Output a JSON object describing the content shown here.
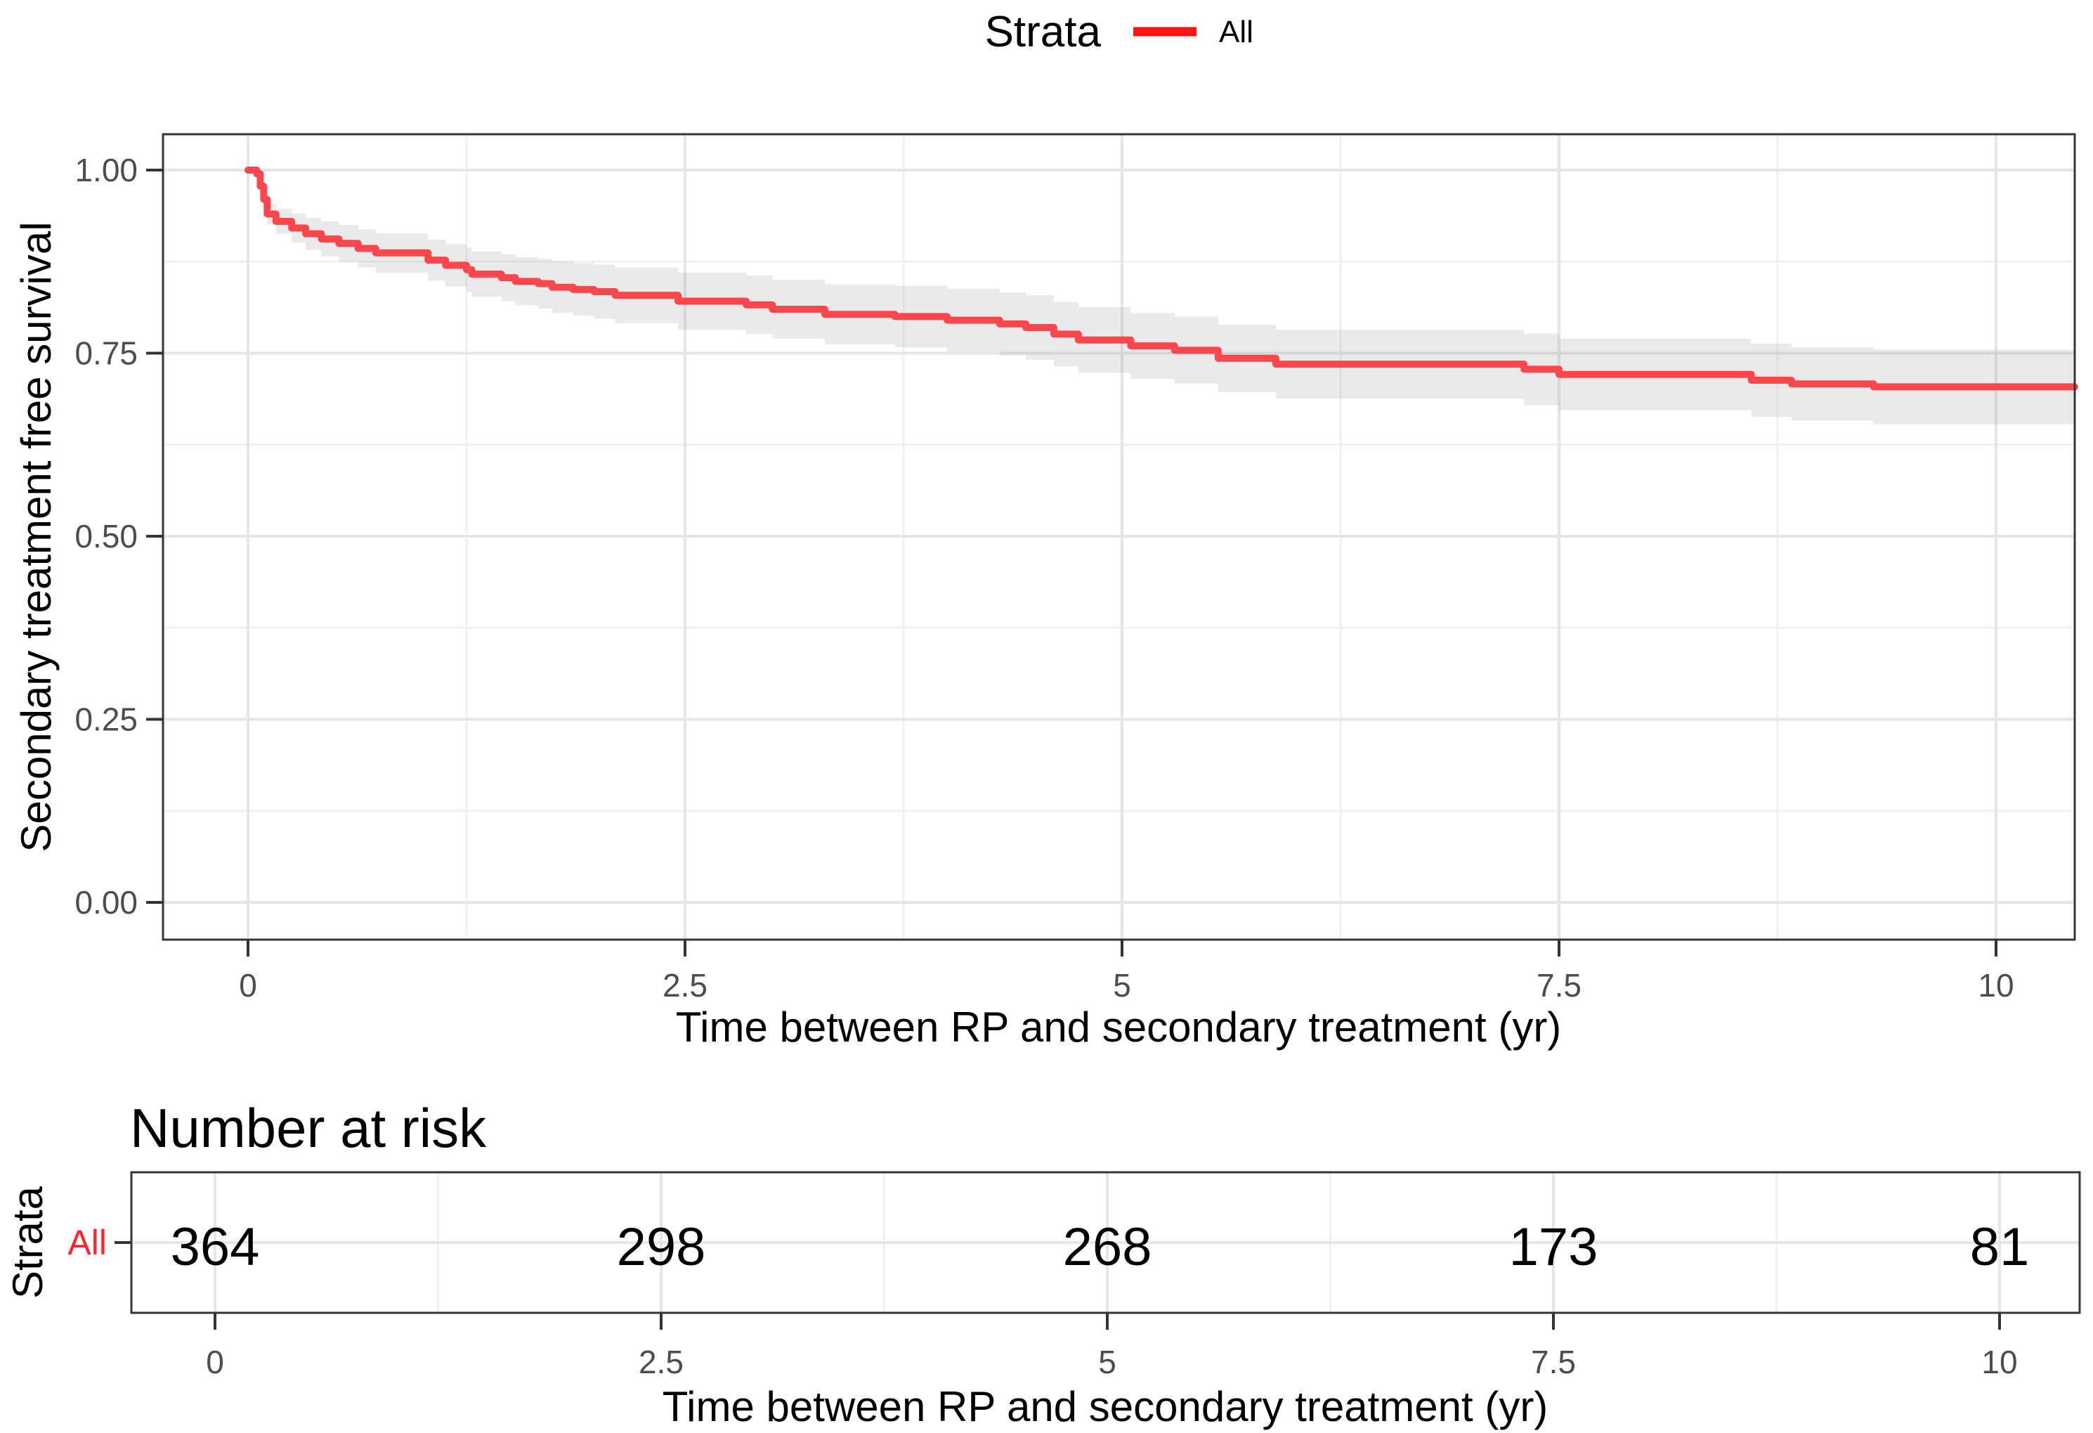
{
  "colors": {
    "curve": "#f9474d",
    "legend_key": "#ff1414",
    "all_label": "#ff2330",
    "band": "rgba(127,127,127,0.16)",
    "grid_major": "#e6e6e6",
    "grid_minor": "#f0f0f0",
    "panel_border": "#343434",
    "tick_text": "#4d4d4d",
    "title_text": "#000000"
  },
  "legend": {
    "title": "Strata",
    "items": [
      {
        "label": "All"
      }
    ]
  },
  "main_plot": {
    "y_axis_title": "Secondary treatment free survival",
    "x_axis_title": "Time between RP and secondary treatment (yr)",
    "y_ticks": [
      "1.00",
      "0.75",
      "0.50",
      "0.25",
      "0.00"
    ],
    "x_ticks": [
      "0",
      "2.5",
      "5",
      "7.5",
      "10"
    ]
  },
  "risk_table": {
    "title": "Number at risk",
    "axis_label": "Strata",
    "row_label": "All",
    "counts": [
      "364",
      "298",
      "268",
      "173",
      "81"
    ],
    "x_ticks": [
      "0",
      "2.5",
      "5",
      "7.5",
      "10"
    ],
    "x_axis_title": "Time between RP and secondary treatment (yr)"
  },
  "chart_data": {
    "type": "line",
    "subtype": "kaplan-meier-step",
    "title": "",
    "xlabel": "Time between RP and secondary treatment (yr)",
    "ylabel": "Secondary treatment free survival",
    "legend_title": "Strata",
    "legend_position": "top",
    "grid": true,
    "xlim": [
      -0.5,
      10.5
    ],
    "ylim": [
      -0.05,
      1.05
    ],
    "x_major_ticks": [
      0,
      2.5,
      5,
      7.5,
      10
    ],
    "y_major_ticks": [
      1.0,
      0.75,
      0.5,
      0.25,
      0.0
    ],
    "x_minor_ticks": [
      1.25,
      3.75,
      6.25,
      8.75
    ],
    "y_minor_ticks": [
      0.875,
      0.625,
      0.375,
      0.125
    ],
    "series": [
      {
        "name": "All",
        "step": true,
        "t": [
          0,
          0.05,
          0.07,
          0.09,
          0.11,
          0.16,
          0.25,
          0.33,
          0.42,
          0.52,
          0.63,
          0.73,
          1.03,
          1.13,
          1.25,
          1.28,
          1.45,
          1.53,
          1.66,
          1.74,
          1.86,
          1.98,
          2.1,
          2.46,
          2.85,
          3.0,
          3.3,
          3.7,
          4.0,
          4.3,
          4.45,
          4.61,
          4.75,
          5.05,
          5.3,
          5.55,
          5.88,
          7.3,
          7.5,
          8.6,
          8.83,
          9.3,
          10.45
        ],
        "survival": [
          1.0,
          0.995,
          0.978,
          0.96,
          0.94,
          0.93,
          0.921,
          0.913,
          0.906,
          0.9,
          0.893,
          0.887,
          0.877,
          0.87,
          0.864,
          0.858,
          0.853,
          0.848,
          0.845,
          0.84,
          0.837,
          0.834,
          0.829,
          0.821,
          0.816,
          0.81,
          0.803,
          0.8,
          0.795,
          0.79,
          0.785,
          0.776,
          0.768,
          0.76,
          0.754,
          0.743,
          0.735,
          0.728,
          0.721,
          0.713,
          0.708,
          0.704,
          0.704
        ],
        "ci_halfwidth": [
          0,
          0.005,
          0.008,
          0.011,
          0.014,
          0.017,
          0.02,
          0.022,
          0.024,
          0.025,
          0.026,
          0.027,
          0.028,
          0.029,
          0.03,
          0.031,
          0.032,
          0.033,
          0.034,
          0.035,
          0.036,
          0.037,
          0.038,
          0.039,
          0.04,
          0.04,
          0.041,
          0.042,
          0.043,
          0.043,
          0.044,
          0.044,
          0.045,
          0.045,
          0.046,
          0.046,
          0.047,
          0.049,
          0.049,
          0.05,
          0.05,
          0.051,
          0.051
        ]
      }
    ],
    "number_at_risk": {
      "strata": "All",
      "times": [
        0,
        2.5,
        5,
        7.5,
        10
      ],
      "counts": [
        364,
        298,
        268,
        173,
        81
      ]
    }
  }
}
